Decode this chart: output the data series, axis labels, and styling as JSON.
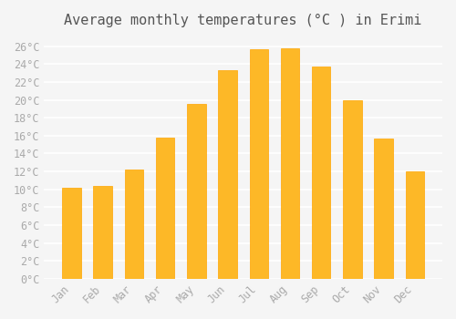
{
  "title": "Average monthly temperatures (°C ) in Erimi",
  "months": [
    "Jan",
    "Feb",
    "Mar",
    "Apr",
    "May",
    "Jun",
    "Jul",
    "Aug",
    "Sep",
    "Oct",
    "Nov",
    "Dec"
  ],
  "values": [
    10.2,
    10.4,
    12.2,
    15.8,
    19.5,
    23.3,
    25.7,
    25.8,
    23.7,
    20.0,
    15.7,
    12.0
  ],
  "bar_color": "#FDB827",
  "bar_edge_color": "#FFA500",
  "background_color": "#f5f5f5",
  "plot_bg_color": "#f5f5f5",
  "grid_color": "#ffffff",
  "tick_label_color": "#aaaaaa",
  "title_color": "#555555",
  "ylim": [
    0,
    27
  ],
  "ytick_step": 2,
  "title_fontsize": 11,
  "tick_fontsize": 8.5
}
